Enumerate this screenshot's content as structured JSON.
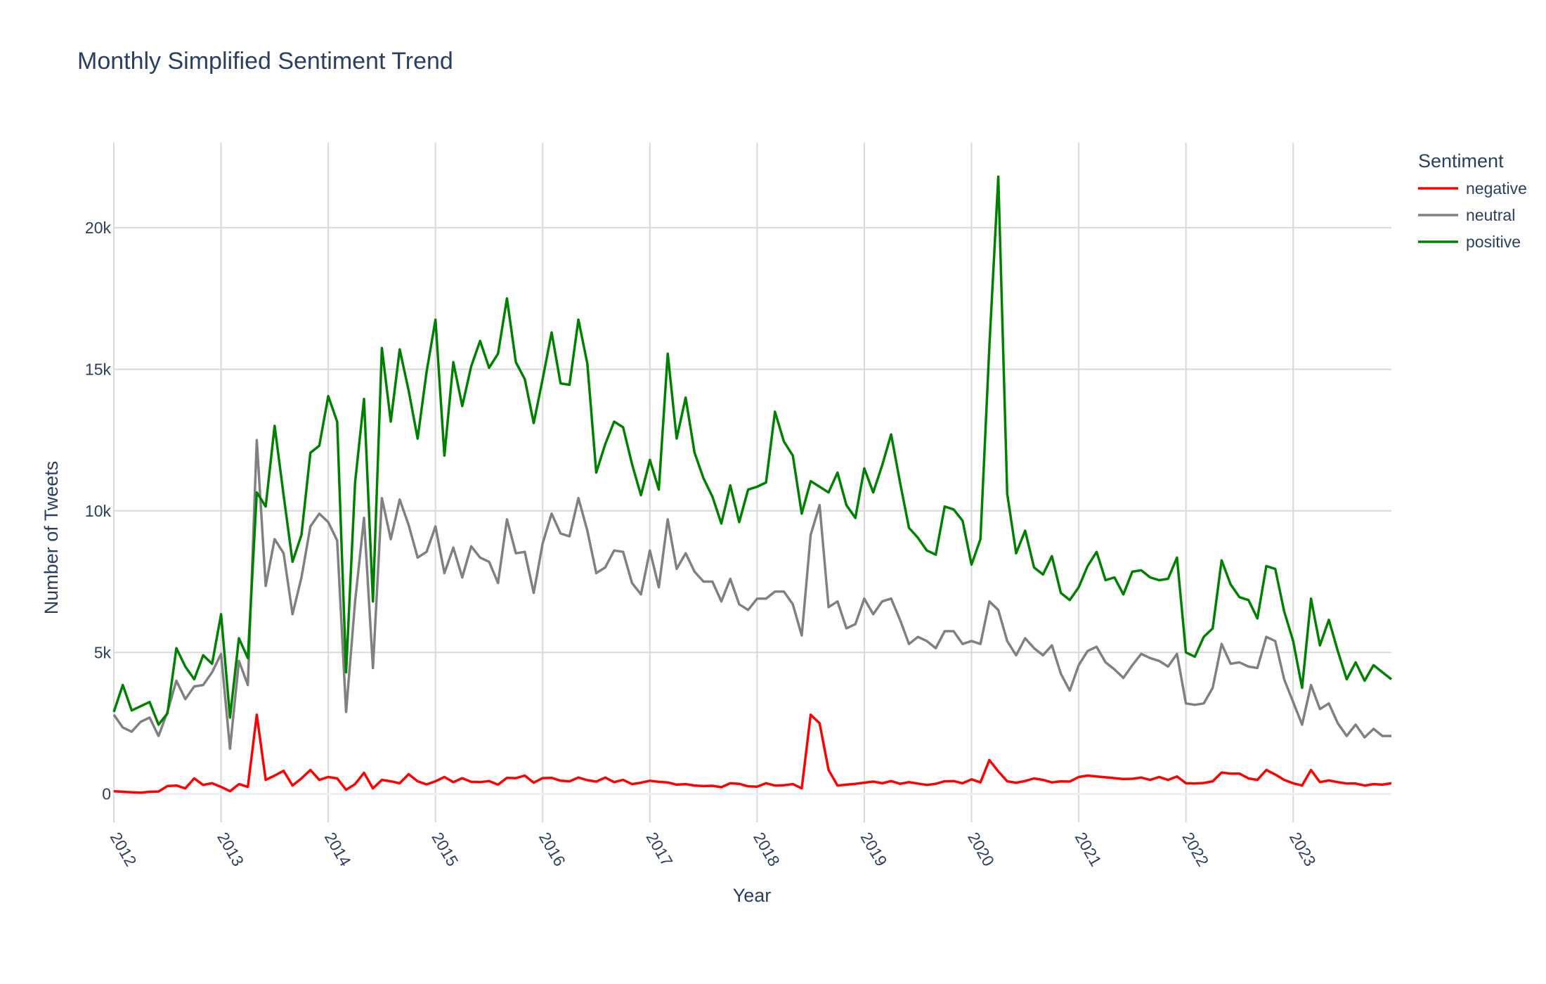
{
  "chart_data": {
    "type": "line",
    "title": "Monthly Simplified Sentiment Trend",
    "xlabel": "Year",
    "ylabel": "Number of Tweets",
    "x_start": "2012-01",
    "x_frequency": "monthly",
    "xlim": [
      "2012-01",
      "2023-12"
    ],
    "ylim": [
      -1000,
      23000
    ],
    "x_ticks": [
      "2012",
      "2013",
      "2014",
      "2015",
      "2016",
      "2017",
      "2018",
      "2019",
      "2020",
      "2021",
      "2022",
      "2023"
    ],
    "y_ticks": [
      {
        "value": 0,
        "label": "0"
      },
      {
        "value": 5000,
        "label": "5k"
      },
      {
        "value": 10000,
        "label": "10k"
      },
      {
        "value": 15000,
        "label": "15k"
      },
      {
        "value": 20000,
        "label": "20k"
      }
    ],
    "grid": true,
    "legend": {
      "title": "Sentiment",
      "position": "top-right"
    },
    "series": [
      {
        "name": "negative",
        "color": "#ff0000",
        "values": [
          100,
          80,
          60,
          50,
          80,
          90,
          280,
          300,
          200,
          550,
          320,
          380,
          250,
          100,
          350,
          250,
          2800,
          500,
          650,
          820,
          300,
          550,
          850,
          500,
          600,
          550,
          150,
          350,
          750,
          200,
          500,
          450,
          380,
          700,
          450,
          340,
          450,
          600,
          420,
          560,
          430,
          420,
          460,
          330,
          570,
          560,
          650,
          400,
          560,
          570,
          470,
          450,
          580,
          490,
          440,
          580,
          420,
          500,
          350,
          400,
          470,
          430,
          410,
          330,
          350,
          300,
          280,
          290,
          240,
          380,
          360,
          270,
          260,
          380,
          300,
          310,
          350,
          200,
          2800,
          2500,
          850,
          300,
          330,
          360,
          400,
          440,
          380,
          460,
          360,
          420,
          370,
          320,
          360,
          450,
          460,
          380,
          520,
          410,
          1200,
          800,
          450,
          400,
          460,
          550,
          500,
          410,
          450,
          440,
          600,
          650,
          620,
          590,
          560,
          530,
          540,
          580,
          500,
          600,
          500,
          620,
          380,
          370,
          390,
          450,
          760,
          720,
          720,
          550,
          500,
          850,
          690,
          500,
          380,
          300,
          850,
          420,
          480,
          420,
          370,
          370,
          300,
          350,
          330,
          380
        ]
      },
      {
        "name": "neutral",
        "color": "#808080",
        "values": [
          2800,
          2350,
          2200,
          2550,
          2700,
          2050,
          2900,
          4000,
          3350,
          3800,
          3850,
          4300,
          4950,
          1600,
          4700,
          3850,
          12500,
          7350,
          9000,
          8500,
          6350,
          7650,
          9450,
          9900,
          9600,
          8950,
          2900,
          6800,
          9750,
          4450,
          10450,
          9000,
          10400,
          9500,
          8350,
          8550,
          9450,
          7800,
          8700,
          7650,
          8750,
          8350,
          8200,
          7450,
          9700,
          8500,
          8550,
          7100,
          8850,
          9900,
          9200,
          9100,
          10450,
          9300,
          7800,
          8000,
          8600,
          8550,
          7450,
          7050,
          8600,
          7300,
          9700,
          7950,
          8500,
          7850,
          7500,
          7500,
          6800,
          7600,
          6700,
          6500,
          6900,
          6900,
          7150,
          7150,
          6700,
          5600,
          9150,
          10200,
          6600,
          6800,
          5850,
          6000,
          6900,
          6350,
          6800,
          6900,
          6150,
          5300,
          5550,
          5400,
          5150,
          5750,
          5750,
          5300,
          5400,
          5300,
          6800,
          6500,
          5400,
          4900,
          5500,
          5150,
          4900,
          5250,
          4250,
          3650,
          4550,
          5050,
          5200,
          4650,
          4400,
          4100,
          4550,
          4950,
          4800,
          4700,
          4500,
          4950,
          3200,
          3150,
          3200,
          3750,
          5300,
          4600,
          4650,
          4500,
          4450,
          5550,
          5400,
          4050,
          3250,
          2450,
          3850,
          3000,
          3200,
          2500,
          2050,
          2450,
          2000,
          2300,
          2050,
          2050
        ]
      },
      {
        "name": "positive",
        "color": "#008000",
        "values": [
          2900,
          3850,
          2950,
          3100,
          3250,
          2450,
          2850,
          5150,
          4500,
          4050,
          4900,
          4600,
          6350,
          2700,
          5500,
          4800,
          10650,
          10150,
          13000,
          10550,
          8200,
          9150,
          12050,
          12300,
          14050,
          13150,
          4300,
          11000,
          13950,
          6800,
          15750,
          13150,
          15700,
          14250,
          12550,
          14900,
          16750,
          11950,
          15250,
          13700,
          15100,
          16000,
          15050,
          15550,
          17500,
          15250,
          14650,
          13100,
          14650,
          16300,
          14500,
          14450,
          16750,
          15200,
          11350,
          12350,
          13150,
          12950,
          11650,
          10550,
          11800,
          10750,
          15550,
          12550,
          14000,
          12050,
          11150,
          10500,
          9550,
          10900,
          9600,
          10750,
          10850,
          11000,
          13500,
          12450,
          11950,
          9900,
          11050,
          10850,
          10650,
          11350,
          10200,
          9750,
          11500,
          10650,
          11600,
          12700,
          11000,
          9400,
          9050,
          8600,
          8450,
          10150,
          10050,
          9650,
          8100,
          9000,
          15800,
          21800,
          10600,
          8500,
          9300,
          8000,
          7750,
          8400,
          7100,
          6850,
          7300,
          8050,
          8550,
          7550,
          7650,
          7050,
          7850,
          7900,
          7650,
          7550,
          7600,
          8350,
          5000,
          4850,
          5550,
          5850,
          8250,
          7400,
          6950,
          6850,
          6200,
          8050,
          7950,
          6450,
          5400,
          3750,
          6900,
          5250,
          6150,
          5050,
          4050,
          4650,
          4000,
          4550,
          4300,
          4050
        ]
      }
    ]
  }
}
